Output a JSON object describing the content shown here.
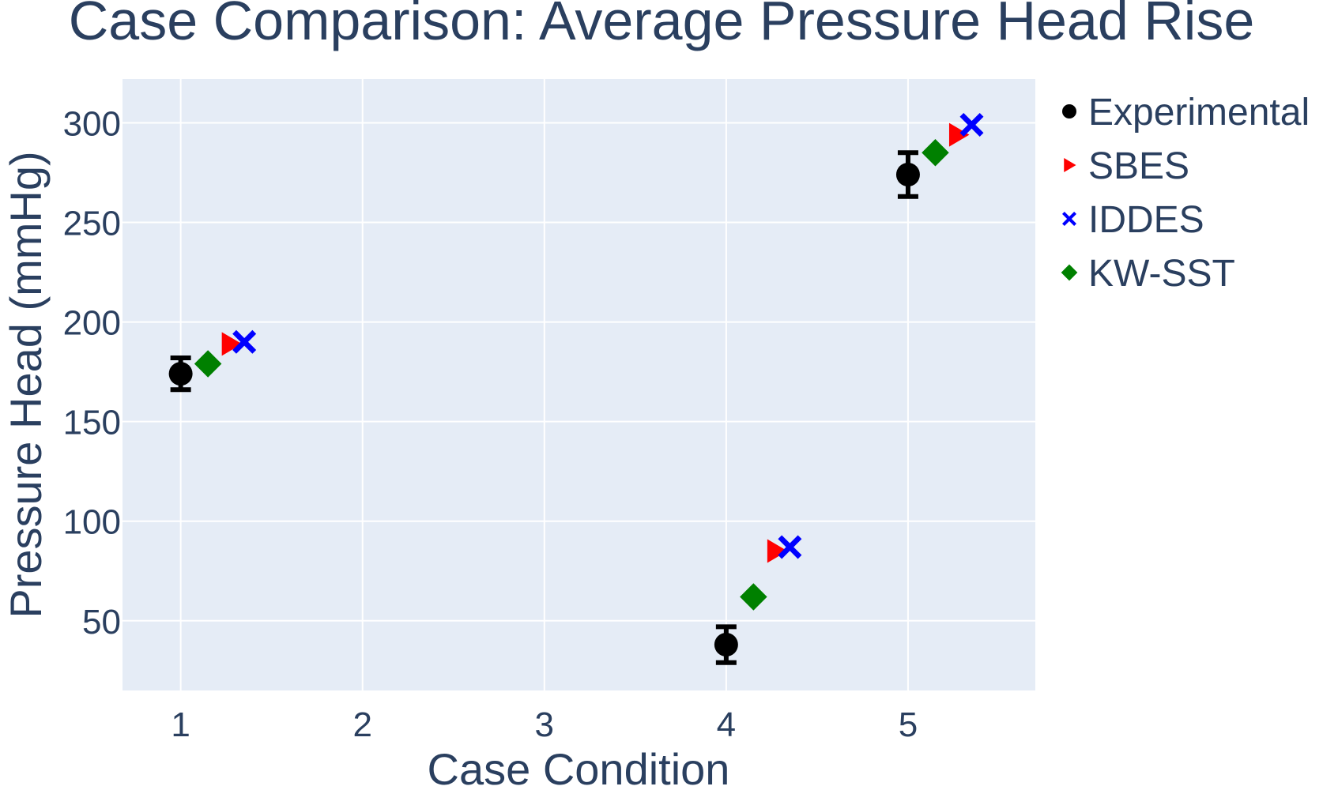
{
  "colors": {
    "plot_bg": "#E5ECF6",
    "grid": "#ffffff",
    "text": "#2a3f5f"
  },
  "chart_data": {
    "type": "scatter",
    "title": "Case Comparison: Average Pressure Head Rise",
    "xlabel": "Case Condition",
    "ylabel": "Pressure Head (mmHg)",
    "xlim": [
      0.68,
      5.7
    ],
    "ylim": [
      15,
      322
    ],
    "x_ticks": [
      1,
      2,
      3,
      4,
      5
    ],
    "y_ticks": [
      50,
      100,
      150,
      200,
      250,
      300
    ],
    "grid": true,
    "legend": "right",
    "series": [
      {
        "name": "Experimental",
        "marker": "circle",
        "color": "#000000",
        "x": [
          1,
          4,
          5
        ],
        "y": [
          174,
          38,
          274
        ],
        "error": [
          8,
          9,
          11
        ]
      },
      {
        "name": "SBES",
        "marker": "triangle-right",
        "color": "#ff0000",
        "x": [
          1.275,
          4.275,
          5.275
        ],
        "y": [
          189,
          85,
          294
        ]
      },
      {
        "name": "IDDES",
        "marker": "x",
        "color": "#0000ff",
        "x": [
          1.35,
          4.35,
          5.35
        ],
        "y": [
          190,
          87,
          299
        ]
      },
      {
        "name": "KW-SST",
        "marker": "diamond",
        "color": "#008000",
        "x": [
          1.15,
          4.15,
          5.15
        ],
        "y": [
          179,
          62,
          285
        ]
      }
    ]
  }
}
